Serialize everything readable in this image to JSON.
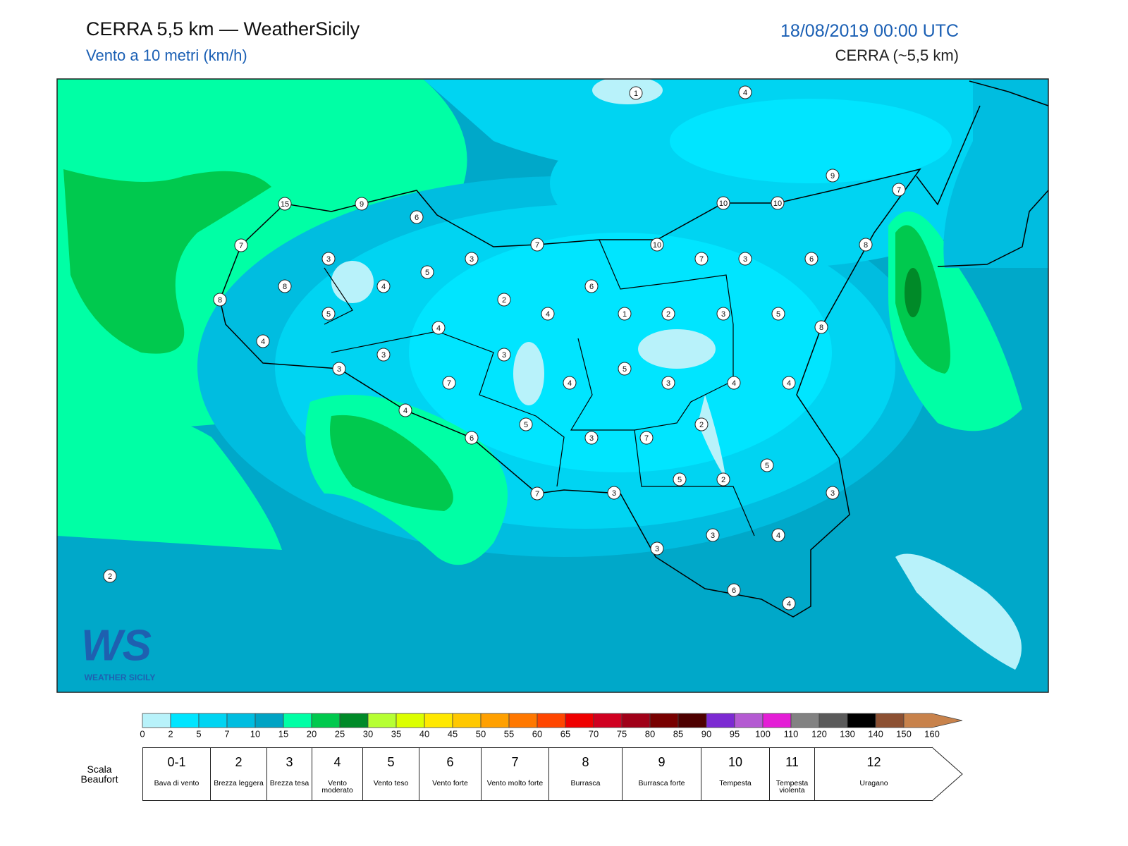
{
  "header": {
    "title": "CERRA 5,5 km — WeatherSicily",
    "subtitle": "Vento a 10 metri (km/h)",
    "datetime": "18/08/2019 00:00 UTC",
    "model": "CERRA (~5,5 km)"
  },
  "logo": {
    "mark": "WS",
    "text": "WEATHER SICILY"
  },
  "stations": [
    1,
    4,
    9,
    7,
    15,
    9,
    6,
    10,
    10,
    7,
    7,
    10,
    8,
    3,
    3,
    5,
    7,
    3,
    6,
    8,
    4,
    6,
    8,
    2,
    4,
    1,
    2,
    3,
    5,
    5,
    4,
    8,
    4,
    3,
    3,
    3,
    5,
    7,
    4,
    3,
    4,
    4,
    4,
    5,
    2,
    6,
    3,
    7,
    5,
    5,
    2,
    7,
    3,
    3,
    3,
    4,
    3,
    2,
    6,
    4
  ],
  "colorbar": {
    "ticks": [
      0,
      2,
      5,
      7,
      10,
      15,
      20,
      25,
      30,
      35,
      40,
      45,
      50,
      55,
      60,
      65,
      70,
      75,
      80,
      85,
      90,
      95,
      100,
      110,
      120,
      130,
      140,
      150,
      160
    ],
    "colors": [
      "#b8f2fa",
      "#00e5ff",
      "#00d4f2",
      "#00bde0",
      "#00a3c4",
      "#00ffa5",
      "#00c94e",
      "#008a28",
      "#b6ff33",
      "#dcff00",
      "#ffe800",
      "#ffc800",
      "#ffa000",
      "#ff7800",
      "#ff4600",
      "#ef0000",
      "#d00020",
      "#a00018",
      "#780000",
      "#4e0000",
      "#7c2ad2",
      "#b45ad2",
      "#e41ed6",
      "#828282",
      "#5a5a5a",
      "#000000",
      "#8c5032",
      "#c8824b"
    ]
  },
  "beaufort": {
    "label": "Scala Beaufort",
    "levels": [
      {
        "number": "0-1",
        "name": "Bava di vento"
      },
      {
        "number": "2",
        "name": "Brezza leggera"
      },
      {
        "number": "3",
        "name": "Brezza tesa"
      },
      {
        "number": "4",
        "name": "Vento moderato"
      },
      {
        "number": "5",
        "name": "Vento teso"
      },
      {
        "number": "6",
        "name": "Vento forte"
      },
      {
        "number": "7",
        "name": "Vento molto forte"
      },
      {
        "number": "8",
        "name": "Burrasca"
      },
      {
        "number": "9",
        "name": "Burrasca forte"
      },
      {
        "number": "10",
        "name": "Tempesta"
      },
      {
        "number": "11",
        "name": "Tempesta violenta"
      },
      {
        "number": "12",
        "name": "Uragano"
      }
    ]
  }
}
